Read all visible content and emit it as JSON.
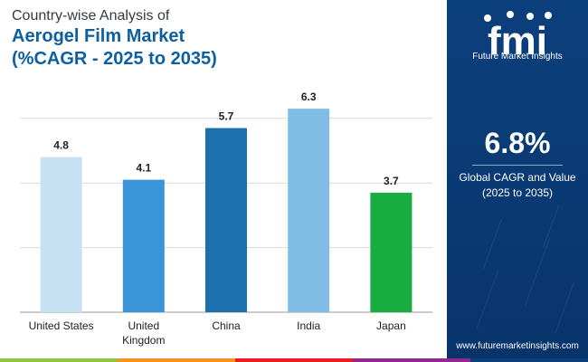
{
  "title": {
    "line1": "Country-wise Analysis of",
    "line2": "Aerogel Film Market",
    "line3": "(%CAGR - 2025 to 2035)"
  },
  "chart_data": {
    "type": "bar",
    "title": "Country-wise Analysis of Aerogel Film Market (%CAGR - 2025 to 2035)",
    "categories": [
      "United States",
      "United Kingdom",
      "China",
      "India",
      "Japan"
    ],
    "values": [
      4.8,
      4.1,
      5.7,
      6.3,
      3.7
    ],
    "value_labels": [
      "4.8",
      "4.1",
      "5.7",
      "6.3",
      "3.7"
    ],
    "bar_colors": [
      "#c5e1f3",
      "#3a94d6",
      "#1b70ad",
      "#82bde6",
      "#18ad3e"
    ],
    "ylim": [
      0,
      7
    ],
    "xlabel": "",
    "ylabel": "",
    "grid": true
  },
  "panel": {
    "logo_text": "fmi",
    "logo_caption": "Future Market Insights",
    "cagr_value": "6.8%",
    "cagr_label_line1": "Global CAGR and Value",
    "cagr_label_line2": "(2025 to 2035)",
    "website": "www.futuremarketinsights.com"
  },
  "colors": {
    "title_dark": "#333a45",
    "title_blue": "#0d5fa0",
    "panel_bg": "#0b3f7c",
    "strip": [
      "#8cc63f",
      "#f7941d",
      "#ed1c24",
      "#92278f",
      "#0b3f7c"
    ]
  }
}
